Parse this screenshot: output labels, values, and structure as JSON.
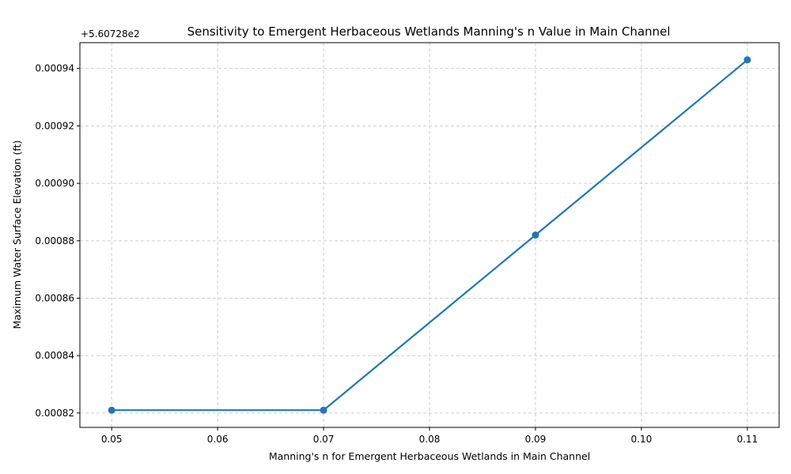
{
  "chart_data": {
    "type": "line",
    "title": "Sensitivity to Emergent Herbaceous Wetlands Manning's n Value in Main Channel",
    "xlabel": "Manning's n for Emergent Herbaceous Wetlands in Main Channel",
    "ylabel": "Maximum Water Surface Elevation (ft)",
    "y_offset_label": "+5.60728e2",
    "xlim": [
      0.047,
      0.113
    ],
    "ylim": [
      0.000815,
      0.000949
    ],
    "xticks": [
      0.05,
      0.06,
      0.07,
      0.08,
      0.09,
      0.1,
      0.11
    ],
    "xtick_labels": [
      "0.05",
      "0.06",
      "0.07",
      "0.08",
      "0.09",
      "0.10",
      "0.11"
    ],
    "yticks": [
      0.00082,
      0.00084,
      0.00086,
      0.00088,
      0.0009,
      0.00092,
      0.00094
    ],
    "ytick_labels": [
      "0.00082",
      "0.00084",
      "0.00086",
      "0.00088",
      "0.00090",
      "0.00092",
      "0.00094"
    ],
    "grid": true,
    "series": [
      {
        "x": [
          0.05,
          0.07,
          0.09,
          0.11
        ],
        "y": [
          0.000821,
          0.000821,
          0.000882,
          0.000943
        ],
        "color": "#1f77b4",
        "marker": "circle"
      }
    ]
  }
}
